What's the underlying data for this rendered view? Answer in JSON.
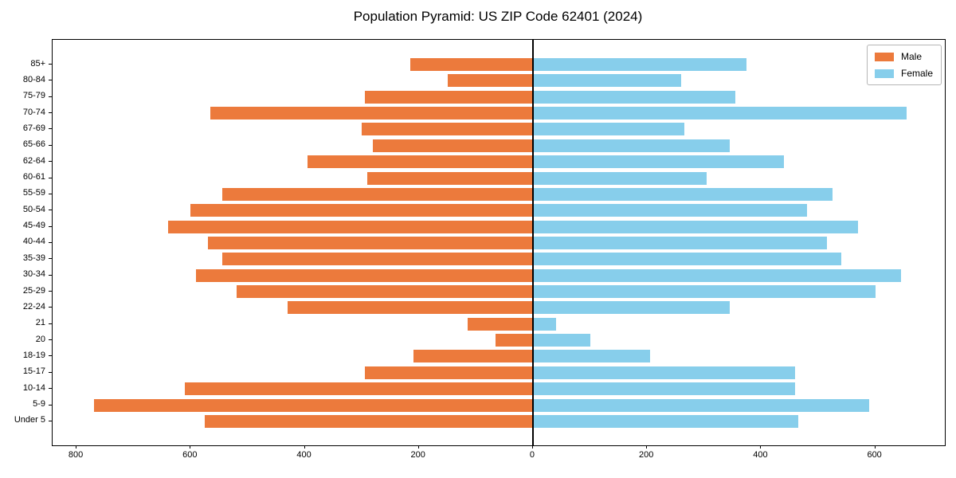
{
  "title": "Population Pyramid: US ZIP Code 62401 (2024)",
  "legend": {
    "male_label": "Male",
    "female_label": "Female"
  },
  "colors": {
    "male": "#EC7A3C",
    "female": "#87CEEB",
    "axis": "#000000"
  },
  "chart_data": {
    "type": "bar",
    "orientation": "horizontal-pyramid",
    "title": "Population Pyramid: US ZIP Code 62401 (2024)",
    "categories": [
      "85+",
      "80-84",
      "75-79",
      "70-74",
      "67-69",
      "65-66",
      "62-64",
      "60-61",
      "55-59",
      "50-54",
      "45-49",
      "40-44",
      "35-39",
      "30-34",
      "25-29",
      "22-24",
      "21",
      "20",
      "18-19",
      "15-17",
      "10-14",
      "5-9",
      "Under 5"
    ],
    "series": [
      {
        "name": "Male",
        "side": "left",
        "color": "#EC7A3C",
        "values": [
          215,
          150,
          295,
          565,
          300,
          280,
          395,
          290,
          545,
          600,
          640,
          570,
          545,
          590,
          520,
          430,
          115,
          65,
          210,
          295,
          610,
          770,
          575
        ]
      },
      {
        "name": "Female",
        "side": "right",
        "color": "#87CEEB",
        "values": [
          375,
          260,
          355,
          655,
          265,
          345,
          440,
          305,
          525,
          480,
          570,
          515,
          540,
          645,
          600,
          345,
          40,
          100,
          205,
          460,
          460,
          590,
          465
        ]
      }
    ],
    "x_tick_values": [
      -800,
      -600,
      -400,
      -200,
      0,
      200,
      400,
      600
    ],
    "x_tick_labels": [
      "800",
      "600",
      "400",
      "200",
      "0",
      "200",
      "400",
      "600"
    ],
    "xlim": [
      -842,
      722
    ],
    "zero_line": true,
    "grid": false,
    "legend_position": "upper right"
  }
}
